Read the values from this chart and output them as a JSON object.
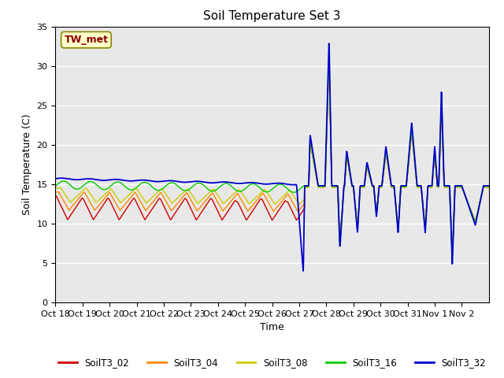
{
  "title": "Soil Temperature Set 3",
  "xlabel": "Time",
  "ylabel": "Soil Temperature (C)",
  "ylim": [
    0,
    35
  ],
  "tick_labels": [
    "Oct 18",
    "Oct 19",
    "Oct 20",
    "Oct 21",
    "Oct 22",
    "Oct 23",
    "Oct 24",
    "Oct 25",
    "Oct 26",
    "Oct 27",
    "Oct 28",
    "Oct 29",
    "Oct 30",
    "Oct 31",
    "Nov 1",
    "Nov 2"
  ],
  "series_colors": {
    "SoilT3_02": "#cc0000",
    "SoilT3_04": "#ff8800",
    "SoilT3_08": "#cccc00",
    "SoilT3_16": "#00cc00",
    "SoilT3_32": "#0000cc"
  },
  "annotation_text": "TW_met",
  "bg_color": "#e8e8e8",
  "title_fontsize": 11,
  "axis_label_fontsize": 9,
  "tick_fontsize": 8,
  "grid_color": "#ffffff",
  "grid_linewidth": 1.0
}
